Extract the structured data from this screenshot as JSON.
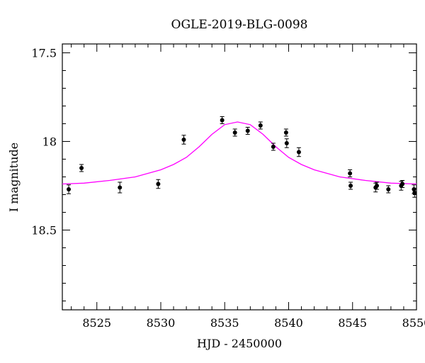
{
  "chart_data": {
    "type": "scatter",
    "title": "OGLE-2019-BLG-0098",
    "xlabel": "HJD - 2450000",
    "ylabel": "I magnitude",
    "xlim": [
      8522.3,
      8550.0
    ],
    "ylim": [
      18.95,
      17.45
    ],
    "y_inverted": true,
    "x_ticks": [
      {
        "value": 8525,
        "label": "8525"
      },
      {
        "value": 8530,
        "label": "8530"
      },
      {
        "value": 8535,
        "label": "8535"
      },
      {
        "value": 8540,
        "label": "8540"
      },
      {
        "value": 8545,
        "label": "8545"
      },
      {
        "value": 8550,
        "label": "8550"
      }
    ],
    "y_ticks": [
      {
        "value": 17.5,
        "label": "17.5"
      },
      {
        "value": 18.0,
        "label": "18"
      },
      {
        "value": 18.5,
        "label": "18.5"
      }
    ],
    "grid": false,
    "series": [
      {
        "kind": "points",
        "color": "#000000",
        "points": [
          {
            "x": 8522.8,
            "y": 18.27,
            "err": 0.025
          },
          {
            "x": 8523.8,
            "y": 18.15,
            "err": 0.02
          },
          {
            "x": 8526.8,
            "y": 18.26,
            "err": 0.03
          },
          {
            "x": 8529.8,
            "y": 18.24,
            "err": 0.025
          },
          {
            "x": 8531.8,
            "y": 17.99,
            "err": 0.025
          },
          {
            "x": 8534.8,
            "y": 17.88,
            "err": 0.02
          },
          {
            "x": 8535.8,
            "y": 17.95,
            "err": 0.02
          },
          {
            "x": 8536.8,
            "y": 17.94,
            "err": 0.02
          },
          {
            "x": 8537.8,
            "y": 17.91,
            "err": 0.02
          },
          {
            "x": 8538.8,
            "y": 18.03,
            "err": 0.02
          },
          {
            "x": 8539.8,
            "y": 17.95,
            "err": 0.02
          },
          {
            "x": 8539.85,
            "y": 18.01,
            "err": 0.025
          },
          {
            "x": 8540.8,
            "y": 18.06,
            "err": 0.025
          },
          {
            "x": 8544.8,
            "y": 18.18,
            "err": 0.02
          },
          {
            "x": 8544.85,
            "y": 18.25,
            "err": 0.02
          },
          {
            "x": 8546.8,
            "y": 18.26,
            "err": 0.025
          },
          {
            "x": 8546.9,
            "y": 18.25,
            "err": 0.02
          },
          {
            "x": 8547.8,
            "y": 18.27,
            "err": 0.02
          },
          {
            "x": 8548.8,
            "y": 18.25,
            "err": 0.025
          },
          {
            "x": 8548.9,
            "y": 18.24,
            "err": 0.02
          },
          {
            "x": 8549.8,
            "y": 18.27,
            "err": 0.025
          },
          {
            "x": 8549.85,
            "y": 18.29,
            "err": 0.025
          }
        ]
      },
      {
        "kind": "model-curve",
        "color": "#ff00ff",
        "points": [
          {
            "x": 8522.3,
            "y": 18.24
          },
          {
            "x": 8524,
            "y": 18.235
          },
          {
            "x": 8526,
            "y": 18.22
          },
          {
            "x": 8528,
            "y": 18.2
          },
          {
            "x": 8530,
            "y": 18.16
          },
          {
            "x": 8531,
            "y": 18.13
          },
          {
            "x": 8532,
            "y": 18.09
          },
          {
            "x": 8533,
            "y": 18.03
          },
          {
            "x": 8534,
            "y": 17.96
          },
          {
            "x": 8535,
            "y": 17.905
          },
          {
            "x": 8536,
            "y": 17.89
          },
          {
            "x": 8537,
            "y": 17.905
          },
          {
            "x": 8538,
            "y": 17.96
          },
          {
            "x": 8539,
            "y": 18.03
          },
          {
            "x": 8540,
            "y": 18.09
          },
          {
            "x": 8541,
            "y": 18.13
          },
          {
            "x": 8542,
            "y": 18.16
          },
          {
            "x": 8544,
            "y": 18.2
          },
          {
            "x": 8546,
            "y": 18.22
          },
          {
            "x": 8548,
            "y": 18.235
          },
          {
            "x": 8550,
            "y": 18.24
          }
        ]
      }
    ]
  }
}
